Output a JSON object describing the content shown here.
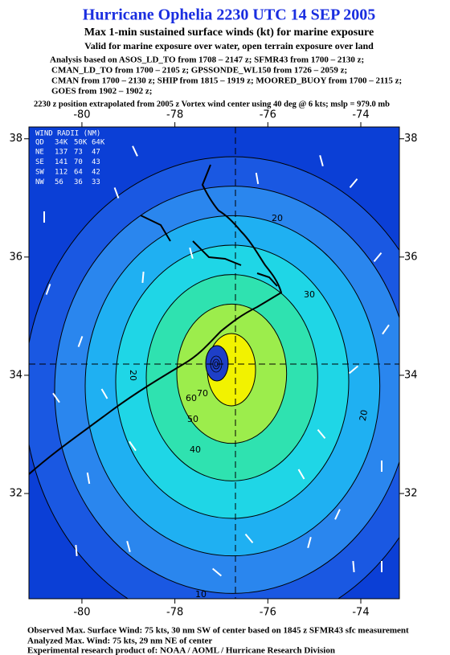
{
  "header": {
    "title": "Hurricane Ophelia 2230 UTC 14 SEP 2005",
    "subtitle": "Max 1-min sustained surface winds (kt) for marine exposure",
    "note": "Valid for marine exposure over water, open terrain exposure over land",
    "analysis": [
      "Analysis based on  ASOS_LD_TO from 1708 – 2147 z;  SFMR43 from 1700 – 2130 z;",
      "CMAN_LD_TO from 1700 – 2105 z;  GPSSONDE_WL150 from 1726 – 2059 z;",
      "CMAN from 1700 – 2130 z;  SHIP from 1815 – 1919 z;  MOORED_BUOY from 1700 – 2115 z;",
      "GOES from 1902 – 1902 z;"
    ],
    "position": "2230 z position extrapolated from 2005 z Vortex wind center using 40 deg @ 6 kts; mslp = 979.0 mb"
  },
  "map": {
    "xlim": [
      -81.14,
      -73.17
    ],
    "ylim": [
      30.22,
      38.2
    ],
    "xticks": [
      -80,
      -78,
      -76,
      -74
    ],
    "yticks": [
      32,
      34,
      36,
      38
    ],
    "contour_levels": [
      10,
      20,
      30,
      40,
      50,
      60,
      70
    ],
    "contour_colors": [
      "#1a58e2",
      "#2a86ee",
      "#1fb0f2",
      "#1fd6e6",
      "#2fe2b0",
      "#9ced4c",
      "#f2f200"
    ],
    "background": "#0b3fd6",
    "wind_radii": {
      "title": "WIND RADII (NM)",
      "header": [
        "QD",
        "34K",
        "50K",
        "64K"
      ],
      "rows": [
        [
          "NE",
          "137",
          "73",
          "47"
        ],
        [
          "SE",
          "141",
          "70",
          "43"
        ],
        [
          "SW",
          "112",
          "64",
          "42"
        ],
        [
          "NW",
          "56",
          "36",
          "33"
        ]
      ]
    }
  },
  "footer": {
    "observed": "Observed Max. Surface Wind: 75 kts, 30 nm SW of center based on 1845 z SFMR43 sfc measurement",
    "analyzed": "Analyzed Max. Wind: 75 kts, 29 nm NE of center",
    "credit": "Experimental research product of: NOAA / AOML / Hurricane Research Division"
  }
}
